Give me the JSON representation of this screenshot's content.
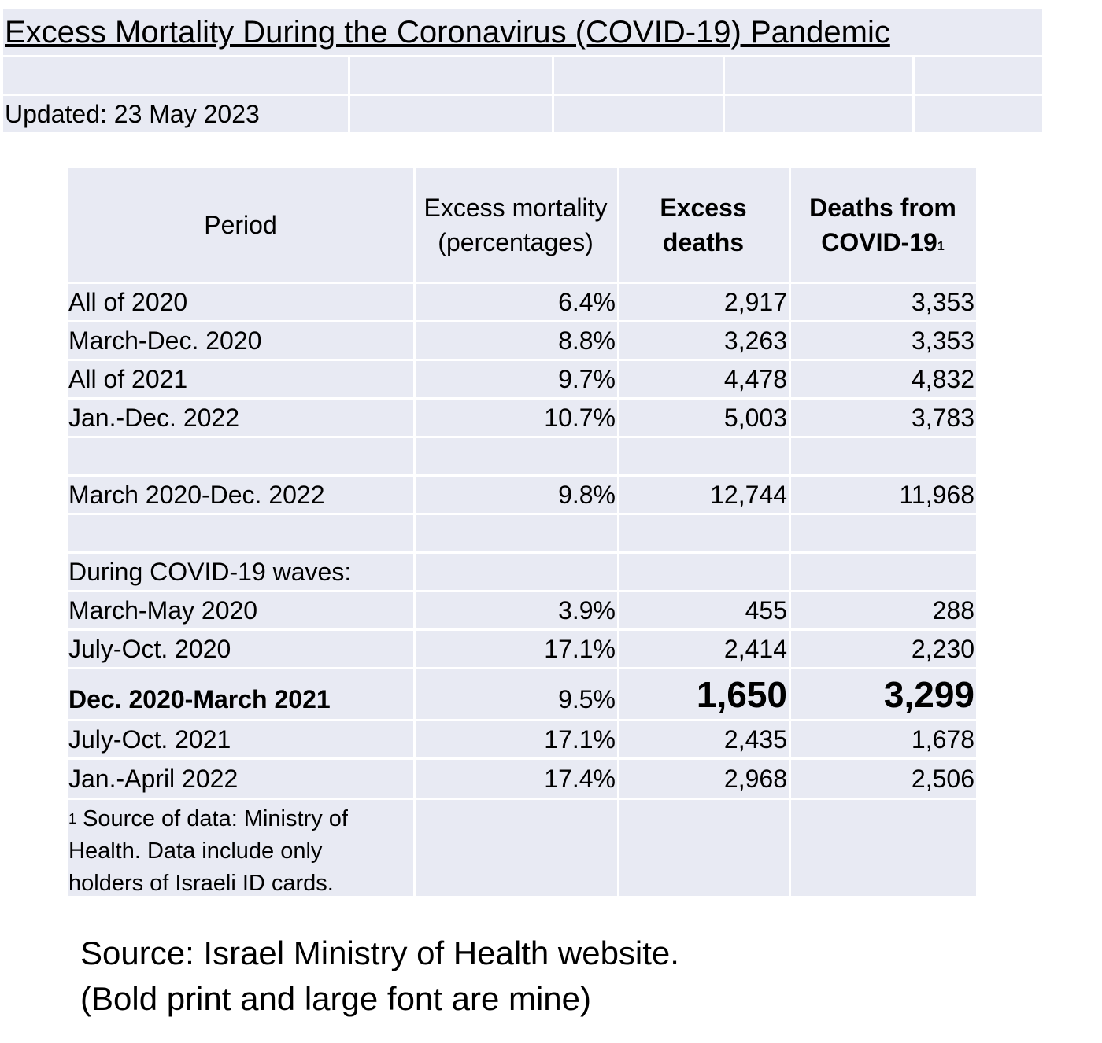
{
  "title": "Excess Mortality During the Coronavirus (COVID-19) Pandemic",
  "updated": "Updated: 23 May 2023",
  "table": {
    "headers": {
      "period": "Period",
      "excess_mortality_line1": "Excess mortality",
      "excess_mortality_line2": "(percentages)",
      "excess_deaths": "Excess deaths",
      "covid_deaths_line1": "Deaths from",
      "covid_deaths_line2": "COVID-19",
      "covid_deaths_sup": "1"
    },
    "rows": [
      {
        "period": "All of 2020",
        "pct": "6.4%",
        "excess": "2,917",
        "covid": "3,353"
      },
      {
        "period": "March-Dec. 2020",
        "pct": "8.8%",
        "excess": "3,263",
        "covid": "3,353"
      },
      {
        "period": "All of 2021",
        "pct": "9.7%",
        "excess": "4,478",
        "covid": "4,832"
      },
      {
        "period": "Jan.-Dec. 2022",
        "pct": "10.7%",
        "excess": "5,003",
        "covid": "3,783"
      },
      {
        "period": "March 2020-Dec. 2022",
        "pct": "9.8%",
        "excess": "12,744",
        "covid": "11,968"
      },
      {
        "period": "During COVID-19 waves:"
      },
      {
        "period": "March-May 2020",
        "pct": "3.9%",
        "excess": "455",
        "covid": "288"
      },
      {
        "period": "July-Oct. 2020",
        "pct": "17.1%",
        "excess": "2,414",
        "covid": "2,230"
      },
      {
        "period": "Dec. 2020-March 2021",
        "pct": "9.5%",
        "excess": "1,650",
        "covid": "3,299"
      },
      {
        "period": "July-Oct. 2021",
        "pct": "17.1%",
        "excess": "2,435",
        "covid": "1,678"
      },
      {
        "period": "Jan.-April 2022",
        "pct": "17.4%",
        "excess": "2,968",
        "covid": "2,506"
      }
    ],
    "footnote_mark": "1",
    "footnote": "Source of data: Ministry of Health. Data include only holders of Israeli ID cards."
  },
  "footer": {
    "line1": "Source: Israel Ministry of Health website.",
    "line2": "(Bold print and large font are mine)"
  }
}
